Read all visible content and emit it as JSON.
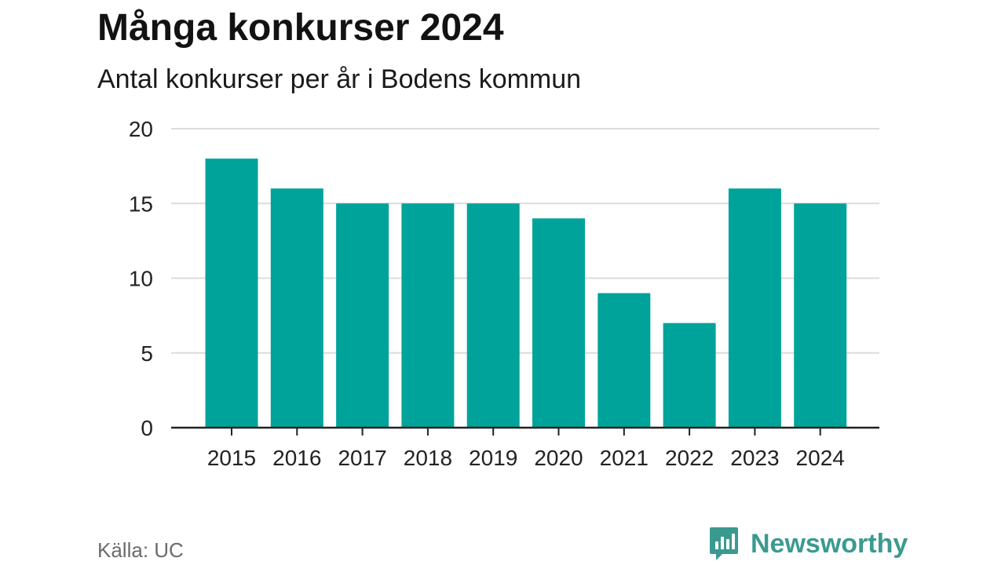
{
  "chart_data": {
    "type": "bar",
    "title": "Många konkurser 2024",
    "subtitle": "Antal konkurser per år i Bodens kommun",
    "categories": [
      "2015",
      "2016",
      "2017",
      "2018",
      "2019",
      "2020",
      "2021",
      "2022",
      "2023",
      "2024"
    ],
    "values": [
      18,
      16,
      15,
      15,
      15,
      14,
      9,
      7,
      16,
      15
    ],
    "ylim": [
      0,
      20
    ],
    "yticks": [
      0,
      5,
      10,
      15,
      20
    ],
    "grid": true,
    "bar_color": "#00a39a"
  },
  "footer": {
    "source": "Källa: UC",
    "brand": "Newsworthy",
    "brand_color": "#3b9a90",
    "brand_icon": "bar-chart-speech-bubble-icon"
  }
}
